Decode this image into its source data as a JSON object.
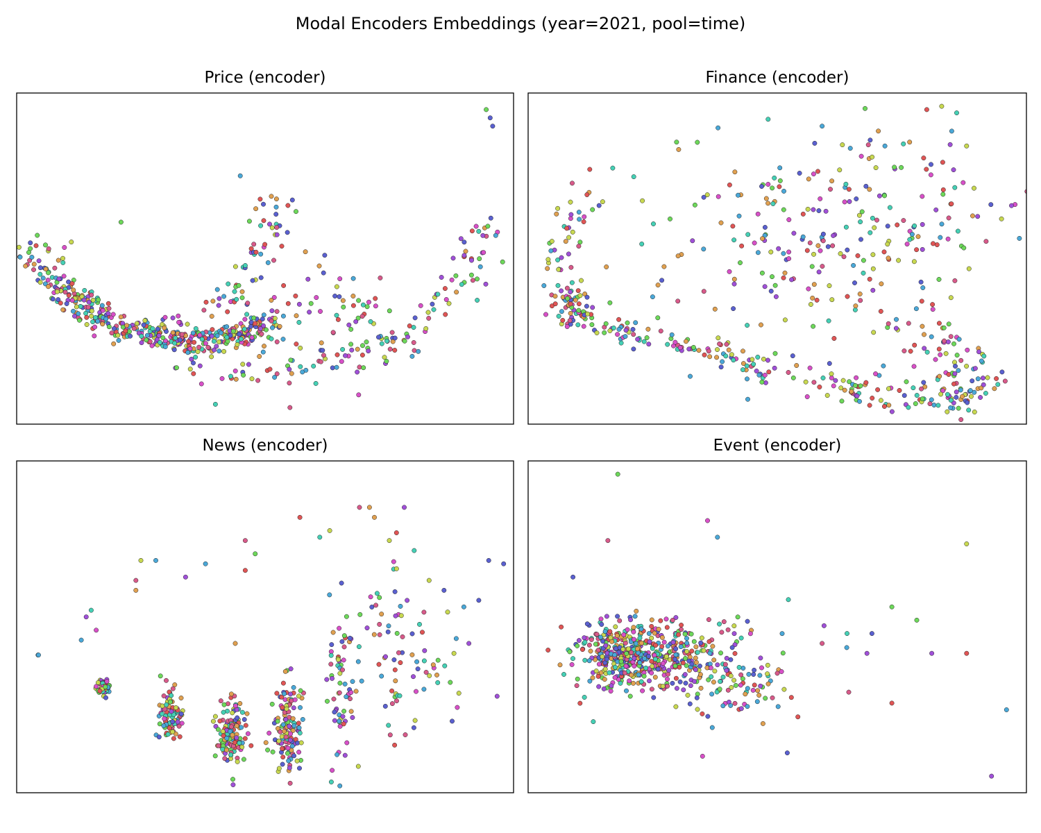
{
  "figure": {
    "title": "Modal Encoders Embeddings (year=2021, pool=time)"
  },
  "palette": [
    "#e05555",
    "#e0a050",
    "#c8d850",
    "#6dd85a",
    "#45d0b5",
    "#4aa8d8",
    "#5a60d0",
    "#a050d8",
    "#d850c8",
    "#d85a8a"
  ],
  "chart_data": [
    {
      "type": "scatter",
      "title": "Price (encoder)",
      "xlabel": "",
      "ylabel": "",
      "xlim": [
        0,
        100
      ],
      "ylim": [
        0,
        100
      ],
      "ticks": "none",
      "grid": false,
      "clusters": [
        {
          "kind": "arc",
          "n": 440,
          "points": [
            [
              4,
              54
            ],
            [
              7,
              45
            ],
            [
              11,
              38
            ],
            [
              16,
              33
            ],
            [
              22,
              29
            ],
            [
              30,
              26
            ],
            [
              38,
              25
            ],
            [
              45,
              27
            ],
            [
              50,
              31
            ]
          ],
          "spread": 2.0
        },
        {
          "kind": "arc",
          "n": 60,
          "points": [
            [
              27,
              27
            ],
            [
              35,
              32
            ],
            [
              43,
              40
            ],
            [
              50,
              55
            ],
            [
              53,
              68
            ]
          ],
          "spread": 2.0
        },
        {
          "kind": "arc",
          "n": 120,
          "points": [
            [
              28,
              18
            ],
            [
              38,
              16
            ],
            [
              50,
              15
            ],
            [
              62,
              19
            ],
            [
              72,
              22
            ],
            [
              80,
              27
            ],
            [
              87,
              36
            ],
            [
              91,
              47
            ],
            [
              94,
              64
            ]
          ],
          "spread": 2.5
        },
        {
          "kind": "blob",
          "n": 90,
          "center": [
            58,
            35
          ],
          "sigma": [
            10,
            9
          ]
        },
        {
          "kind": "points",
          "n": 0,
          "points": [
            [
              94.5,
              95
            ],
            [
              95.3,
              92.5
            ],
            [
              95.8,
              90
            ],
            [
              21,
              61
            ],
            [
              45,
              75
            ],
            [
              11,
              55
            ],
            [
              62,
              51
            ],
            [
              40,
              6
            ],
            [
              55,
              5
            ]
          ]
        }
      ]
    },
    {
      "type": "scatter",
      "title": "Finance (encoder)",
      "xlabel": "",
      "ylabel": "",
      "xlim": [
        0,
        100
      ],
      "ylim": [
        0,
        100
      ],
      "ticks": "none",
      "grid": false,
      "clusters": [
        {
          "kind": "arc",
          "n": 150,
          "points": [
            [
              14,
              68
            ],
            [
              7,
              58
            ],
            [
              5,
              48
            ],
            [
              7,
              38
            ],
            [
              10,
              32
            ],
            [
              16,
              30
            ],
            [
              22,
              27
            ],
            [
              30,
              24
            ],
            [
              38,
              22
            ],
            [
              45,
              17
            ],
            [
              50,
              12
            ]
          ],
          "spread": 1.8
        },
        {
          "kind": "blob",
          "n": 40,
          "center": [
            9,
            36
          ],
          "sigma": [
            2,
            3
          ]
        },
        {
          "kind": "blob",
          "n": 190,
          "center": [
            67,
            58
          ],
          "sigma": [
            14,
            16
          ]
        },
        {
          "kind": "blob",
          "n": 90,
          "center": [
            40,
            55
          ],
          "sigma": [
            17,
            17
          ]
        },
        {
          "kind": "arc",
          "n": 110,
          "points": [
            [
              52,
              14
            ],
            [
              57,
              16
            ],
            [
              62,
              12
            ],
            [
              68,
              10
            ],
            [
              74,
              8
            ],
            [
              80,
              7
            ],
            [
              86,
              8
            ],
            [
              90,
              11
            ],
            [
              92,
              14
            ]
          ],
          "spread": 2.5
        },
        {
          "kind": "blob",
          "n": 50,
          "center": [
            84,
            20
          ],
          "sigma": [
            5,
            5
          ]
        },
        {
          "kind": "points",
          "n": 0,
          "points": [
            [
              80,
              95
            ],
            [
              83,
              96
            ],
            [
              86,
              94
            ],
            [
              95,
              62
            ],
            [
              97,
              66
            ],
            [
              59,
              90
            ],
            [
              88,
              84
            ]
          ]
        }
      ]
    },
    {
      "type": "scatter",
      "title": "News (encoder)",
      "xlabel": "",
      "ylabel": "",
      "xlim": [
        0,
        100
      ],
      "ylim": [
        0,
        100
      ],
      "ticks": "none",
      "grid": false,
      "clusters": [
        {
          "kind": "blob",
          "n": 60,
          "center": [
            17.5,
            32
          ],
          "sigma": [
            0.6,
            1.2
          ]
        },
        {
          "kind": "blob",
          "n": 90,
          "center": [
            31,
            23
          ],
          "sigma": [
            1.1,
            3.5
          ]
        },
        {
          "kind": "blob",
          "n": 130,
          "center": [
            43,
            19
          ],
          "sigma": [
            1.5,
            5.5
          ]
        },
        {
          "kind": "blob",
          "n": 130,
          "center": [
            54.5,
            20
          ],
          "sigma": [
            1.4,
            7.5
          ]
        },
        {
          "kind": "blob",
          "n": 70,
          "center": [
            65.5,
            32
          ],
          "sigma": [
            1.5,
            12
          ]
        },
        {
          "kind": "blob",
          "n": 45,
          "center": [
            75.5,
            48
          ],
          "sigma": [
            2.0,
            14
          ]
        },
        {
          "kind": "blob",
          "n": 30,
          "center": [
            82,
            38
          ],
          "sigma": [
            5.0,
            8
          ]
        },
        {
          "kind": "points",
          "n": 0,
          "points": [
            [
              4.3,
              41.5
            ],
            [
              4.4,
              41.5
            ],
            [
              14,
              53
            ],
            [
              15,
              55
            ],
            [
              16,
              49
            ],
            [
              13,
              46
            ],
            [
              24,
              64
            ],
            [
              24,
              61
            ],
            [
              25,
              70
            ],
            [
              28,
              70
            ],
            [
              34,
              65
            ],
            [
              38,
              69
            ],
            [
              46,
              76
            ],
            [
              46,
              67
            ],
            [
              40,
              23
            ],
            [
              44,
              45
            ],
            [
              48,
              72
            ],
            [
              57,
              83
            ],
            [
              61,
              77
            ],
            [
              63,
              79
            ],
            [
              69,
              86
            ],
            [
              71,
              86
            ],
            [
              72,
              83
            ],
            [
              78,
              86
            ],
            [
              80,
              73
            ],
            [
              83,
              64
            ],
            [
              88,
              42
            ],
            [
              93,
              58
            ],
            [
              95,
              70
            ],
            [
              98,
              69
            ],
            [
              86,
              61
            ],
            [
              90,
              56
            ],
            [
              89,
              30
            ],
            [
              91,
              45
            ]
          ]
        }
      ]
    },
    {
      "type": "scatter",
      "title": "Event (encoder)",
      "xlabel": "",
      "ylabel": "",
      "xlim": [
        0,
        100
      ],
      "ylim": [
        0,
        100
      ],
      "ticks": "none",
      "grid": false,
      "clusters": [
        {
          "kind": "blob",
          "n": 230,
          "center": [
            18,
            42
          ],
          "sigma": [
            4,
            5
          ]
        },
        {
          "kind": "blob",
          "n": 200,
          "center": [
            25,
            41
          ],
          "sigma": [
            6,
            5
          ]
        },
        {
          "kind": "blob",
          "n": 150,
          "center": [
            34,
            38
          ],
          "sigma": [
            10,
            7
          ]
        },
        {
          "kind": "blob",
          "n": 50,
          "center": [
            40,
            32
          ],
          "sigma": [
            6,
            5
          ]
        },
        {
          "kind": "points",
          "n": 0,
          "points": [
            [
              4,
              43
            ],
            [
              18,
              96
            ],
            [
              16,
              76
            ],
            [
              36,
              82
            ],
            [
              38,
              77
            ],
            [
              88,
              75
            ],
            [
              59,
              45
            ],
            [
              64,
              48
            ],
            [
              68,
              42
            ],
            [
              73,
              56
            ],
            [
              78,
              52
            ],
            [
              81,
              42
            ],
            [
              69,
              48
            ],
            [
              73,
              27
            ],
            [
              88,
              42
            ],
            [
              96,
              25
            ],
            [
              93,
              5
            ],
            [
              52,
              12
            ],
            [
              35,
              11
            ],
            [
              9,
              65
            ],
            [
              44,
              26
            ],
            [
              50,
              36
            ]
          ]
        }
      ]
    }
  ]
}
